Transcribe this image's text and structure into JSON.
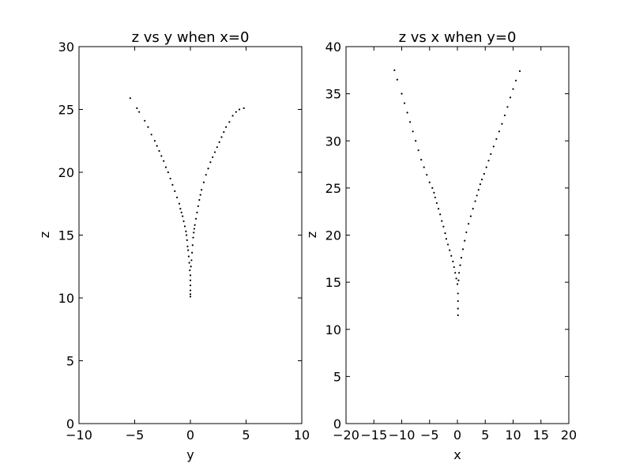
{
  "chart_data": [
    {
      "type": "scatter",
      "title": "z vs y when x=0",
      "xlabel": "y",
      "ylabel": "z",
      "xlim": [
        -10,
        10
      ],
      "ylim": [
        0,
        30
      ],
      "xticks": [
        -10,
        -5,
        0,
        5,
        10
      ],
      "yticks": [
        0,
        5,
        10,
        15,
        20,
        25,
        30
      ],
      "xtick_labels": [
        "−10",
        "−5",
        "0",
        "5",
        "10"
      ],
      "ytick_labels": [
        "0",
        "5",
        "10",
        "15",
        "20",
        "25",
        "30"
      ],
      "grid": false,
      "marker_color": "#000000",
      "series": [
        {
          "x": [
            -5.4,
            -4.8,
            -4.6,
            -4.1,
            -3.8,
            -3.5,
            -3.2,
            -3.0,
            -2.8,
            -2.6,
            -2.4,
            -2.2,
            -2.0,
            -1.8,
            -1.6,
            -1.4,
            -1.2,
            -1.0,
            -0.9,
            -0.8,
            -0.7,
            -0.6,
            -0.5,
            -0.4,
            -0.35,
            -0.3,
            -0.25,
            -0.2,
            -0.15,
            -0.1,
            -0.05,
            0.0,
            0.0,
            0.0,
            0.0,
            0.0,
            0.0,
            0.05,
            0.1,
            0.15,
            0.2,
            0.25,
            0.3,
            0.35,
            0.4,
            0.5,
            0.6,
            0.7,
            0.8,
            0.9,
            1.0,
            1.2,
            1.4,
            1.6,
            1.8,
            2.0,
            2.2,
            2.4,
            2.6,
            2.8,
            3.0,
            3.2,
            3.5,
            3.8,
            4.1,
            4.4,
            4.8
          ],
          "y": [
            25.9,
            25.1,
            24.8,
            24.1,
            23.6,
            23.0,
            22.5,
            22.1,
            21.7,
            21.3,
            20.9,
            20.4,
            20.0,
            19.5,
            19.0,
            18.5,
            18.0,
            17.5,
            17.1,
            16.8,
            16.5,
            16.1,
            15.7,
            15.3,
            15.0,
            14.6,
            14.1,
            13.8,
            13.3,
            12.8,
            12.2,
            11.8,
            11.4,
            11.0,
            10.6,
            10.3,
            10.1,
            12.5,
            13.0,
            13.6,
            14.2,
            14.8,
            15.2,
            15.5,
            15.8,
            16.3,
            16.8,
            17.3,
            17.8,
            18.2,
            18.6,
            19.2,
            19.8,
            20.3,
            20.8,
            21.2,
            21.6,
            22.0,
            22.4,
            22.8,
            23.2,
            23.6,
            24.0,
            24.5,
            24.8,
            25.0,
            25.1
          ]
        }
      ]
    },
    {
      "type": "scatter",
      "title": "z vs x when y=0",
      "xlabel": "x",
      "ylabel": "z",
      "xlim": [
        -20,
        20
      ],
      "ylim": [
        0,
        40
      ],
      "xticks": [
        -20,
        -15,
        -10,
        -5,
        0,
        5,
        10,
        15,
        20
      ],
      "yticks": [
        0,
        5,
        10,
        15,
        20,
        25,
        30,
        35,
        40
      ],
      "xtick_labels": [
        "−20",
        "−15",
        "−10",
        "−5",
        "0",
        "5",
        "10",
        "15",
        "20"
      ],
      "ytick_labels": [
        "0",
        "5",
        "10",
        "15",
        "20",
        "25",
        "30",
        "35",
        "40"
      ],
      "grid": false,
      "marker_color": "#000000",
      "series": [
        {
          "x": [
            -11.3,
            -10.8,
            -10.0,
            -9.5,
            -9.0,
            -8.5,
            -8.0,
            -7.5,
            -7.0,
            -6.5,
            -6.0,
            -5.5,
            -5.0,
            -4.5,
            -4.2,
            -4.0,
            -3.7,
            -3.4,
            -3.1,
            -2.8,
            -2.5,
            -2.2,
            -2.0,
            -1.7,
            -1.4,
            -1.1,
            -0.8,
            -0.6,
            -0.4,
            -0.2,
            0.0,
            0.1,
            0.1,
            0.1,
            0.1,
            0.2,
            0.3,
            0.5,
            0.7,
            1.0,
            1.3,
            1.6,
            2.0,
            2.4,
            2.8,
            3.2,
            3.5,
            3.8,
            4.1,
            4.4,
            4.8,
            5.2,
            5.6,
            6.0,
            6.5,
            7.0,
            7.5,
            8.0,
            8.5,
            9.0,
            9.5,
            10.0,
            10.5,
            11.2
          ],
          "y": [
            37.5,
            36.5,
            35.0,
            34.0,
            33.0,
            32.0,
            31.0,
            30.0,
            29.0,
            28.0,
            27.2,
            26.4,
            25.6,
            25.0,
            24.5,
            24.0,
            23.4,
            22.8,
            22.2,
            21.5,
            20.9,
            20.2,
            19.6,
            19.0,
            18.4,
            17.8,
            17.2,
            16.6,
            16.0,
            15.4,
            14.8,
            13.8,
            13.0,
            12.2,
            11.5,
            15.2,
            16.0,
            16.8,
            17.6,
            18.5,
            19.4,
            20.3,
            21.2,
            22.0,
            22.8,
            23.6,
            24.2,
            24.8,
            25.4,
            25.9,
            26.5,
            27.2,
            27.9,
            28.6,
            29.4,
            30.2,
            31.0,
            31.8,
            32.7,
            33.6,
            34.6,
            35.5,
            36.4,
            37.4
          ]
        }
      ]
    }
  ]
}
